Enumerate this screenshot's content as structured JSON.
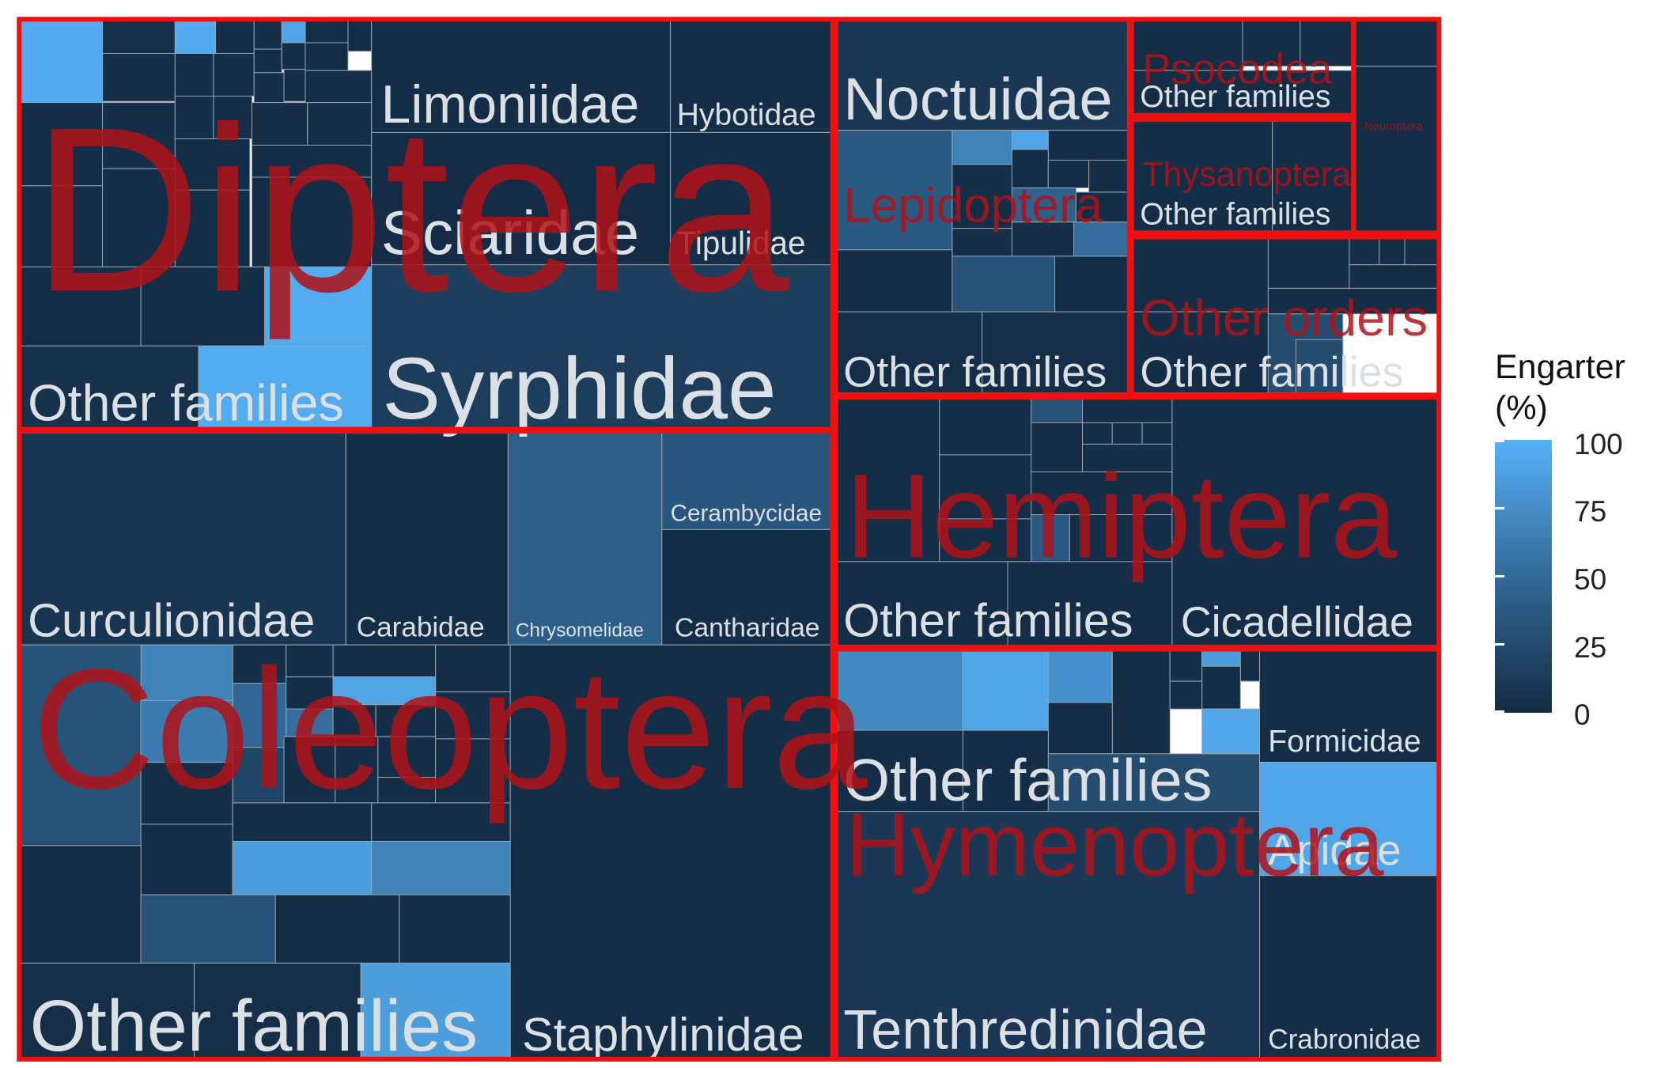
{
  "chart_data": {
    "type": "treemap",
    "value_field": "Engarter (%)",
    "color_scale": {
      "low": "#132b43",
      "high": "#56b1f7",
      "min": 0,
      "max": 100
    },
    "legend": {
      "title": "Engarter\n(%)",
      "ticks": [
        "100",
        "75",
        "50",
        "25",
        "0"
      ],
      "tick_values": [
        100,
        75,
        50,
        25,
        0
      ],
      "placement": "right"
    },
    "orders": [
      {
        "name": "Diptera",
        "labelled_families": [
          {
            "name": "Limoniidae",
            "value": 2
          },
          {
            "name": "Hybotidae",
            "value": 2
          },
          {
            "name": "Sciaridae",
            "value": 1
          },
          {
            "name": "Tipulidae",
            "value": 2
          },
          {
            "name": "Syrphidae",
            "value": 14
          },
          {
            "name": "Other families",
            "value": 5
          }
        ],
        "small_families_values": [
          95,
          3,
          95,
          2,
          2,
          2,
          2,
          2,
          90,
          2,
          2,
          2,
          2,
          2,
          2,
          2,
          2,
          2,
          2,
          2,
          2,
          2,
          2,
          2,
          2,
          2,
          2,
          2,
          2,
          2,
          2,
          96
        ]
      },
      {
        "name": "Coleoptera",
        "labelled_families": [
          {
            "name": "Curculionidae",
            "value": 8
          },
          {
            "name": "Carabidae",
            "value": 2
          },
          {
            "name": "Chrysomelidae",
            "value": 38
          },
          {
            "name": "Cerambycidae",
            "value": 32
          },
          {
            "name": "Cantharidae",
            "value": 2
          },
          {
            "name": "Staphylinidae",
            "value": 2
          },
          {
            "name": "Other families",
            "value": 3
          }
        ],
        "small_families_values": [
          65,
          30,
          2,
          2,
          2,
          2,
          45,
          2,
          90,
          60,
          50,
          2,
          2,
          2,
          2,
          20,
          2,
          2,
          2,
          2,
          2,
          2,
          2,
          2,
          2,
          85
        ]
      },
      {
        "name": "Lepidoptera",
        "labelled_families": [
          {
            "name": "Noctuidae",
            "value": 10
          },
          {
            "name": "Other families",
            "value": 3
          }
        ],
        "small_families_values": [
          35,
          65,
          90,
          2,
          2,
          2,
          2,
          2,
          40,
          2,
          2,
          2,
          50,
          2,
          30,
          2
        ]
      },
      {
        "name": "Psocodea",
        "labelled_families": [
          {
            "name": "Other families",
            "value": 2
          }
        ],
        "small_families_values": [
          2,
          2,
          2,
          2
        ]
      },
      {
        "name": "Thysanoptera",
        "labelled_families": [
          {
            "name": "Other families",
            "value": 2
          }
        ],
        "small_families_values": [
          2,
          2
        ]
      },
      {
        "name": "Neuroptera",
        "labelled_families": [],
        "small_families_values": [
          2,
          2
        ]
      },
      {
        "name": "Other orders",
        "labelled_families": [
          {
            "name": "Other families",
            "value": 2
          }
        ],
        "small_families_values": [
          2,
          2,
          2,
          2,
          2,
          2,
          2,
          2,
          25
        ]
      },
      {
        "name": "Hemiptera",
        "labelled_families": [
          {
            "name": "Cicadellidae",
            "value": 2
          },
          {
            "name": "Other families",
            "value": 10
          }
        ],
        "small_families_values": [
          2,
          2,
          30,
          2,
          2,
          2,
          2,
          2,
          2,
          2,
          2,
          2,
          35,
          2,
          2,
          2
        ]
      },
      {
        "name": "Hymenoptera",
        "labelled_families": [
          {
            "name": "Formicidae",
            "value": 2
          },
          {
            "name": "Apidae",
            "value": 92
          },
          {
            "name": "Tenthredinidae",
            "value": 10
          },
          {
            "name": "Crabronidae",
            "value": 2
          },
          {
            "name": "Other families",
            "value": 3
          }
        ],
        "small_families_values": [
          70,
          90,
          75,
          2,
          2,
          85,
          2,
          2,
          2,
          2,
          92,
          2,
          2,
          25
        ]
      }
    ]
  }
}
